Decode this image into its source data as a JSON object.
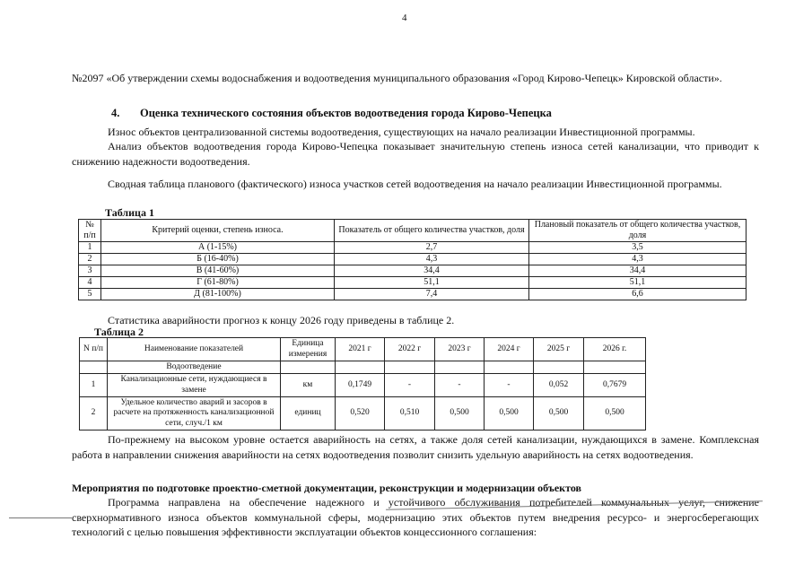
{
  "page_number": "4",
  "intro": "№2097 «Об утверждении схемы водоснабжения и водоотведения муниципального образования «Город Кирово-Чепецк» Кировской области».",
  "section4": {
    "number": "4.",
    "title": "Оценка технического состояния объектов водоотведения города Кирово-Чепецка"
  },
  "para1": "Износ объектов централизованной системы водоотведения, существующих на начало реализации Инвестиционной программы.",
  "para2": "Анализ объектов водоотведения города Кирово-Чепецка показывает значительную степень износа сетей канализации, что приводит к снижению надежности водоотведения.",
  "para3": "Сводная таблица планового (фактического) износа участков сетей водоотведения на начало реализации Инвестиционной программы.",
  "table1": {
    "caption": "Таблица 1",
    "headers": [
      "№ п/п",
      "Критерий оценки, степень износа.",
      "Показатель от общего количества участков, доля",
      "Плановый показатель от общего количества участков, доля"
    ],
    "rows": [
      [
        "1",
        "А (1-15%)",
        "2,7",
        "3,5"
      ],
      [
        "2",
        "Б (16-40%)",
        "4,3",
        "4,3"
      ],
      [
        "3",
        "В (41-60%)",
        "34,4",
        "34,4"
      ],
      [
        "4",
        "Г (61-80%)",
        "51,1",
        "51,1"
      ],
      [
        "5",
        "Д (81-100%)",
        "7,4",
        "6,6"
      ]
    ]
  },
  "para4": "Статистика аварийности прогноз к концу 2026 году приведены в таблице 2.",
  "table2": {
    "caption": "Таблица 2",
    "headers": [
      "N п/п",
      "Наименование показателей",
      "Единица измерения",
      "2021 г",
      "2022 г",
      "2023 г",
      "2024 г",
      "2025 г",
      "2026 г."
    ],
    "group": "Водоотведение",
    "rows": [
      [
        "1",
        "Канализационные сети, нуждающиеся в замене",
        "км",
        "0,1749",
        "-",
        "-",
        "-",
        "0,052",
        "0,7679"
      ],
      [
        "2",
        "Удельное количество аварий и засоров в расчете на протяженность канализационной сети, случ./1 км",
        "единиц",
        "0,520",
        "0,510",
        "0,500",
        "0,500",
        "0,500",
        "0,500"
      ]
    ]
  },
  "para5": "По-прежнему на высоком уровне остается аварийность на сетях, а также доля сетей канализации, нуждающихся в замене. Комплексная работа в направлении снижения аварийности на сетях водоотведения позволит снизить удельную аварийность на сетях водоотведения.",
  "section_title": "Мероприятия по подготовке проектно-сметной документации, реконструкции и модернизации объектов",
  "para6": "Программа направлена на обеспечение надежного и устойчивого обслуживания потребителей коммунальных услуг, снижение сверхнормативного износа объектов коммунальной сферы, модернизацию этих объектов путем внедрения ресурсо- и энергосберегающих технологий с целью повышения эффективности эксплуатации объектов концессионного соглашения:"
}
